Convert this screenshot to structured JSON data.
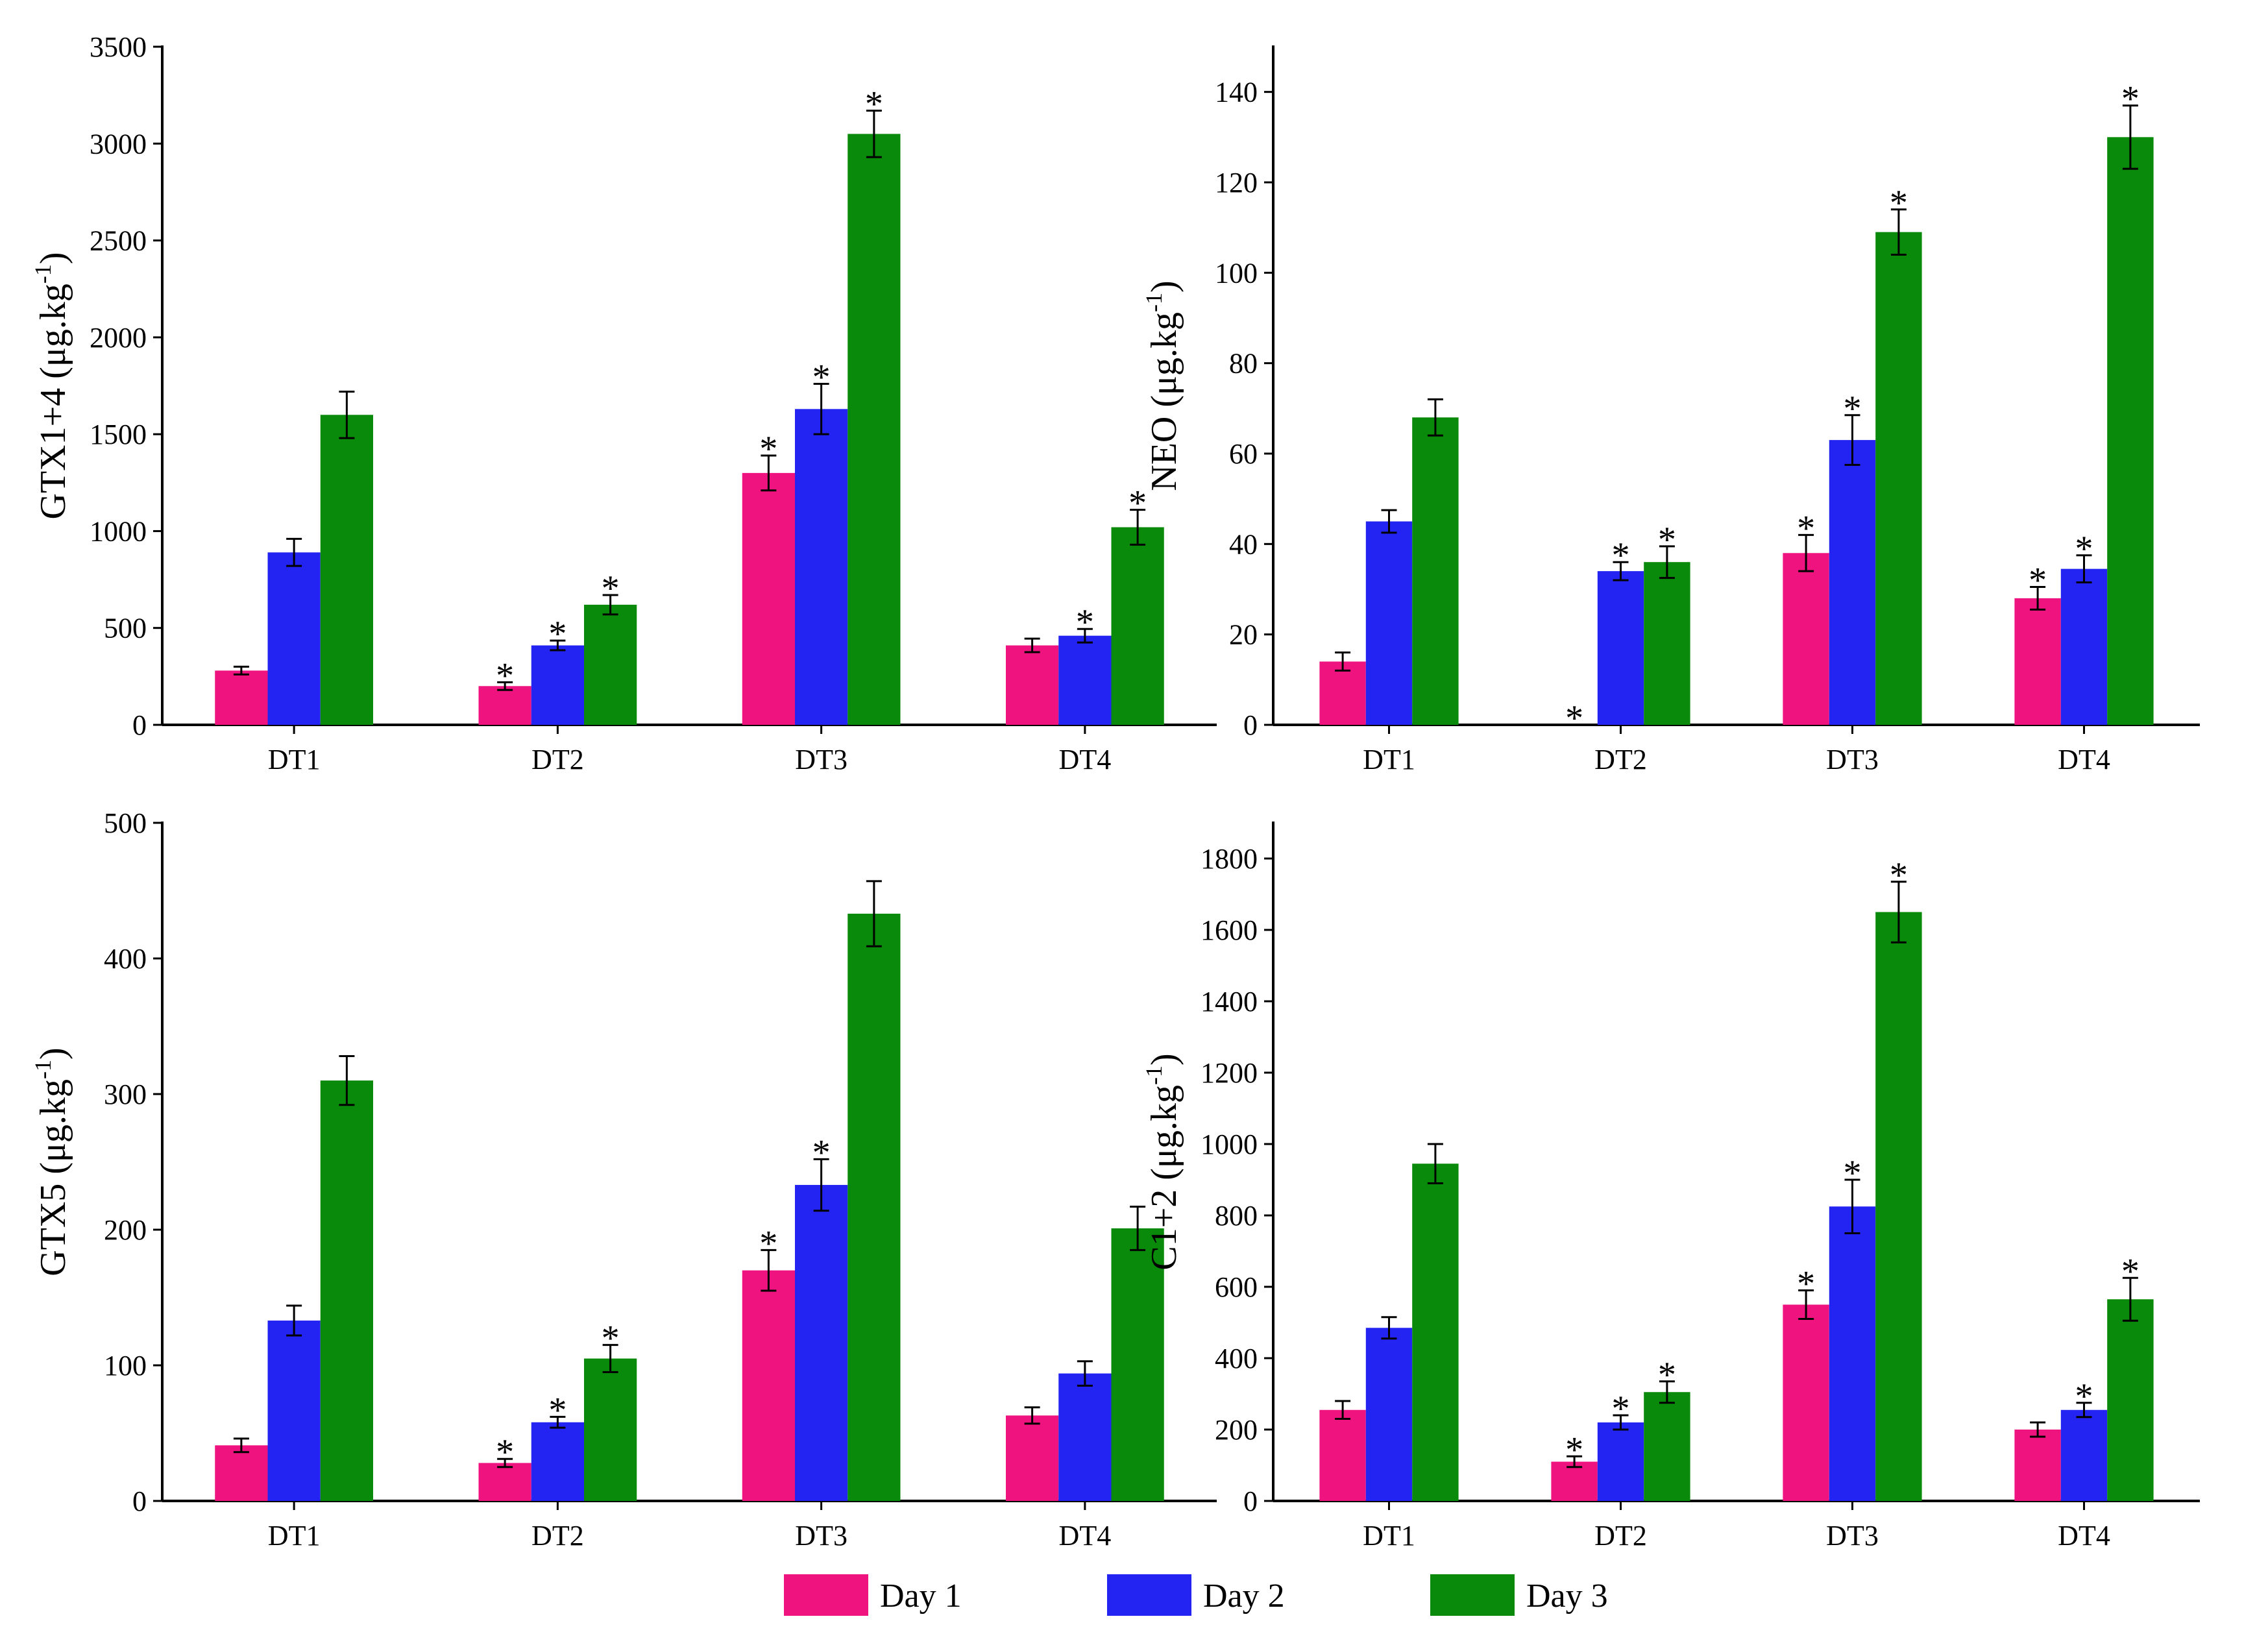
{
  "legend": {
    "placement": "bottom-center",
    "items": [
      {
        "label": "Day 1",
        "color": "#ef1380"
      },
      {
        "label": "Day 2",
        "color": "#2424f2"
      },
      {
        "label": "Day 3",
        "color": "#0a8a0a"
      }
    ]
  },
  "chart_data": [
    {
      "type": "bar",
      "ylabel": "GTX1+4 (μg.kg",
      "ylabel_sup": "-1",
      "ylabel_end": ")",
      "ylim": [
        0,
        3500
      ],
      "yticks": [
        0,
        500,
        1000,
        1500,
        2000,
        2500,
        3000,
        3500
      ],
      "categories": [
        "DT1",
        "DT2",
        "DT3",
        "DT4"
      ],
      "series": [
        {
          "name": "Day 1",
          "values": [
            280,
            200,
            1300,
            410
          ],
          "errors": [
            20,
            20,
            90,
            35
          ],
          "marks": [
            "",
            "*",
            "*",
            ""
          ]
        },
        {
          "name": "Day 2",
          "values": [
            890,
            410,
            1630,
            460
          ],
          "errors": [
            70,
            25,
            130,
            35
          ],
          "marks": [
            "",
            "*",
            "*",
            "*"
          ]
        },
        {
          "name": "Day 3",
          "values": [
            1600,
            620,
            3050,
            1020
          ],
          "errors": [
            120,
            50,
            120,
            90
          ],
          "marks": [
            "",
            "*",
            "*",
            "*"
          ]
        }
      ]
    },
    {
      "type": "bar",
      "ylabel": "NEO (μg.kg",
      "ylabel_sup": "-1",
      "ylabel_end": ")",
      "ylim": [
        0,
        150
      ],
      "yticks": [
        0,
        20,
        40,
        60,
        80,
        100,
        120,
        140
      ],
      "categories": [
        "DT1",
        "DT2",
        "DT3",
        "DT4"
      ],
      "series": [
        {
          "name": "Day 1",
          "values": [
            14,
            0,
            38,
            28
          ],
          "errors": [
            2,
            0,
            4,
            2.5
          ],
          "marks": [
            "",
            "*",
            "*",
            "*"
          ]
        },
        {
          "name": "Day 2",
          "values": [
            45,
            34,
            63,
            34.5
          ],
          "errors": [
            2.5,
            2,
            5.5,
            3
          ],
          "marks": [
            "",
            "*",
            "*",
            "*"
          ]
        },
        {
          "name": "Day 3",
          "values": [
            68,
            36,
            109,
            130
          ],
          "errors": [
            4,
            3.5,
            5,
            7
          ],
          "marks": [
            "",
            "*",
            "*",
            "*"
          ]
        }
      ]
    },
    {
      "type": "bar",
      "ylabel": "GTX5 (μg.kg",
      "ylabel_sup": "-1",
      "ylabel_end": ")",
      "ylim": [
        0,
        500
      ],
      "yticks": [
        0,
        100,
        200,
        300,
        400,
        500
      ],
      "categories": [
        "DT1",
        "DT2",
        "DT3",
        "DT4"
      ],
      "series": [
        {
          "name": "Day 1",
          "values": [
            41,
            28,
            170,
            63
          ],
          "errors": [
            5,
            3,
            15,
            6
          ],
          "marks": [
            "",
            "*",
            "*",
            ""
          ]
        },
        {
          "name": "Day 2",
          "values": [
            133,
            58,
            233,
            94
          ],
          "errors": [
            11,
            4,
            19,
            9
          ],
          "marks": [
            "",
            "*",
            "*",
            ""
          ]
        },
        {
          "name": "Day 3",
          "values": [
            310,
            105,
            433,
            201
          ],
          "errors": [
            18,
            10,
            24,
            16
          ],
          "marks": [
            "",
            "*",
            "",
            ""
          ]
        }
      ]
    },
    {
      "type": "bar",
      "ylabel": "C1+2 (μg.kg",
      "ylabel_sup": "-1",
      "ylabel_end": ")",
      "ylim": [
        0,
        1900
      ],
      "yticks": [
        0,
        200,
        400,
        600,
        800,
        1000,
        1200,
        1400,
        1600,
        1800
      ],
      "categories": [
        "DT1",
        "DT2",
        "DT3",
        "DT4"
      ],
      "series": [
        {
          "name": "Day 1",
          "values": [
            255,
            110,
            550,
            200
          ],
          "errors": [
            25,
            15,
            40,
            20
          ],
          "marks": [
            "",
            "*",
            "*",
            ""
          ]
        },
        {
          "name": "Day 2",
          "values": [
            485,
            220,
            825,
            255
          ],
          "errors": [
            30,
            20,
            75,
            20
          ],
          "marks": [
            "",
            "*",
            "*",
            "*"
          ]
        },
        {
          "name": "Day 3",
          "values": [
            945,
            305,
            1650,
            565
          ],
          "errors": [
            55,
            30,
            85,
            60
          ],
          "marks": [
            "",
            "*",
            "*",
            "*"
          ]
        }
      ]
    }
  ]
}
